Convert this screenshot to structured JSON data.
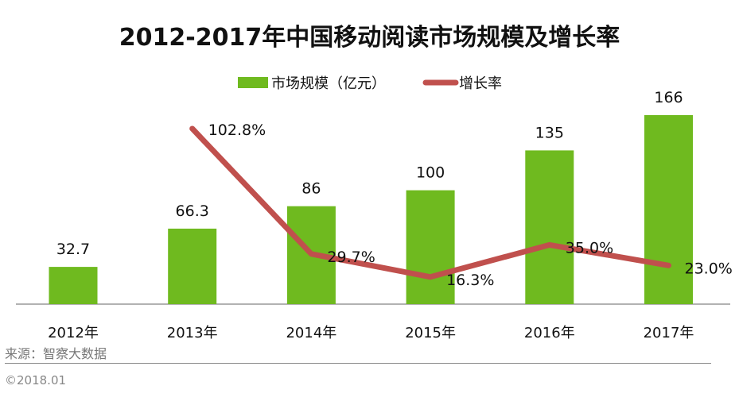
{
  "title": "2012-2017年中国移动阅读市场规模及增长率",
  "source": "来源：智察大数据",
  "copyright": "©2018.01",
  "colors": {
    "bar": "#6fba1f",
    "line": "#c0504d",
    "axis": "#999999"
  },
  "chart_data": {
    "type": "bar+line",
    "title": "2012-2017年中国移动阅读市场规模及增长率",
    "categories": [
      "2012年",
      "2013年",
      "2014年",
      "2015年",
      "2016年",
      "2017年"
    ],
    "series": [
      {
        "name": "市场规模（亿元）",
        "type": "bar",
        "values": [
          32.7,
          66.3,
          86,
          100,
          135,
          166
        ],
        "labels": [
          "32.7",
          "66.3",
          "86",
          "100",
          "135",
          "166"
        ]
      },
      {
        "name": "增长率",
        "type": "line",
        "values": [
          null,
          102.8,
          29.7,
          16.3,
          35.0,
          23.0
        ],
        "labels": [
          "",
          "102.8%",
          "29.7%",
          "16.3%",
          "35.0%",
          "23.0%"
        ]
      }
    ],
    "legend": "top",
    "grid": false
  }
}
